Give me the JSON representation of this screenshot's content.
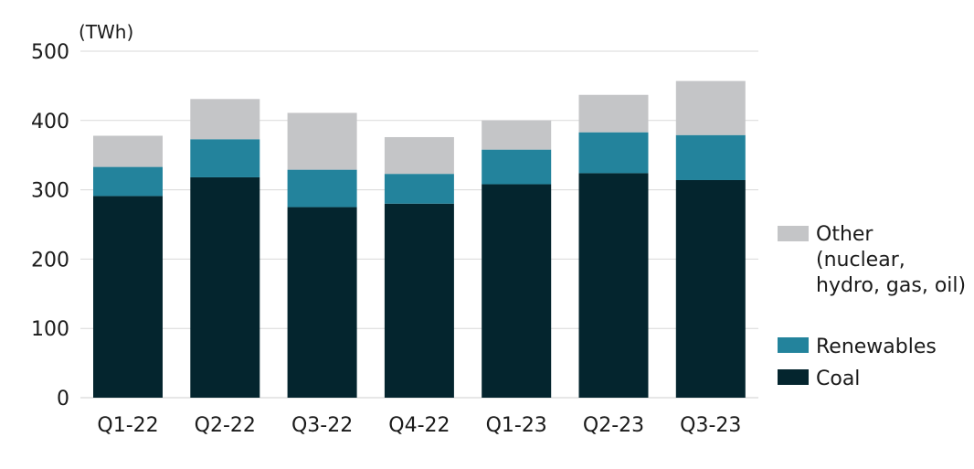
{
  "chart_data": {
    "type": "bar",
    "stacked": true,
    "unit_label": "(TWh)",
    "categories": [
      "Q1-22",
      "Q2-22",
      "Q3-22",
      "Q4-22",
      "Q1-23",
      "Q2-23",
      "Q3-23"
    ],
    "ylim": [
      0,
      500
    ],
    "yticks": [
      0,
      100,
      200,
      300,
      400,
      500
    ],
    "grid": true,
    "legend_position": "right",
    "series": [
      {
        "name": "Coal",
        "color": "#04252e",
        "values": [
          291,
          318,
          275,
          280,
          308,
          324,
          314
        ]
      },
      {
        "name": "Renewables",
        "color": "#23839c",
        "values": [
          42,
          55,
          54,
          43,
          50,
          59,
          65
        ]
      },
      {
        "name": "Other",
        "color": "#c4c5c7",
        "values": [
          45,
          58,
          82,
          53,
          42,
          54,
          78
        ]
      }
    ],
    "legend": [
      {
        "series": "Other",
        "lines": [
          "Other",
          "(nuclear,",
          "hydro, gas, oil)"
        ]
      },
      {
        "series": "Renewables",
        "lines": [
          "Renewables"
        ]
      },
      {
        "series": "Coal",
        "lines": [
          "Coal"
        ]
      }
    ]
  }
}
